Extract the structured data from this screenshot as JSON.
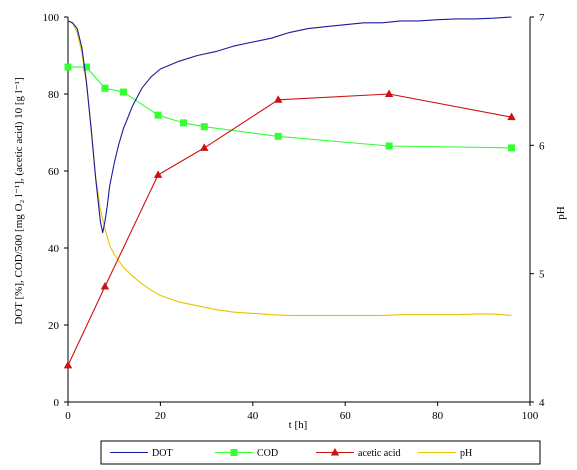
{
  "chart_data": {
    "type": "line",
    "xlabel": "t [h]",
    "ylabel": "DOT [%], COD/500 [mg O₂ l⁻¹], (acetic acid) 10 [g l⁻¹]",
    "y2label": "pH",
    "xlim": [
      0,
      100
    ],
    "ylim": [
      0,
      100
    ],
    "y2lim": [
      4,
      7
    ],
    "x_ticks": [
      "0",
      "20",
      "40",
      "60",
      "80",
      "100"
    ],
    "y_ticks": [
      "0",
      "20",
      "40",
      "60",
      "80",
      "100"
    ],
    "y2_ticks": [
      "4",
      "5",
      "6",
      "7"
    ],
    "grid": false,
    "legend_position": "bottom",
    "series": [
      {
        "name": "DOT",
        "axis": "left",
        "color": "#1a1aa0",
        "marker": "none",
        "x": [
          0,
          1,
          2,
          3,
          4,
          5,
          6,
          7,
          7.5,
          8,
          8.5,
          9,
          10,
          11,
          12,
          14,
          16,
          18,
          20,
          24,
          28,
          32,
          36,
          40,
          44,
          48,
          52,
          56,
          60,
          64,
          68,
          72,
          76,
          80,
          84,
          88,
          92,
          96
        ],
        "y": [
          99,
          98.5,
          97,
          92,
          83,
          71,
          58,
          47,
          44,
          47,
          51,
          56,
          62,
          67,
          71,
          77,
          81.5,
          84.5,
          86.5,
          88.5,
          90,
          91,
          92.5,
          93.5,
          94.5,
          96,
          97,
          97.5,
          98,
          98.5,
          98.5,
          99,
          99,
          99.3,
          99.5,
          99.5,
          99.7,
          100
        ]
      },
      {
        "name": "COD",
        "axis": "left",
        "color": "#33ff33",
        "marker": "square",
        "x": [
          0,
          4,
          8,
          12,
          19.5,
          25,
          29.5,
          45.5,
          69.5,
          96
        ],
        "y": [
          87,
          87,
          81.5,
          80.5,
          74.5,
          72.5,
          71.5,
          69,
          66.5,
          66
        ]
      },
      {
        "name": "acetic acid",
        "axis": "left",
        "color": "#cc1111",
        "marker": "triangle",
        "x": [
          0,
          8,
          19.5,
          29.5,
          45.5,
          69.5,
          96
        ],
        "y": [
          9.5,
          30,
          59,
          66,
          78.5,
          80,
          74
        ]
      },
      {
        "name": "pH",
        "axis": "right",
        "color": "#e8c400",
        "marker": "none",
        "x": [
          0,
          1,
          2,
          3,
          4,
          5,
          6,
          7,
          8,
          9,
          10,
          12,
          14,
          16,
          18,
          20,
          24,
          28,
          32,
          36,
          40,
          44,
          48,
          52,
          56,
          60,
          64,
          68,
          72,
          76,
          80,
          84,
          88,
          92,
          96
        ],
        "y": [
          6.97,
          6.95,
          6.88,
          6.72,
          6.48,
          6.15,
          5.75,
          5.5,
          5.35,
          5.22,
          5.15,
          5.05,
          4.98,
          4.92,
          4.87,
          4.83,
          4.78,
          4.75,
          4.72,
          4.7,
          4.69,
          4.68,
          4.675,
          4.675,
          4.675,
          4.675,
          4.675,
          4.675,
          4.68,
          4.68,
          4.68,
          4.68,
          4.685,
          4.685,
          4.675
        ]
      }
    ]
  }
}
